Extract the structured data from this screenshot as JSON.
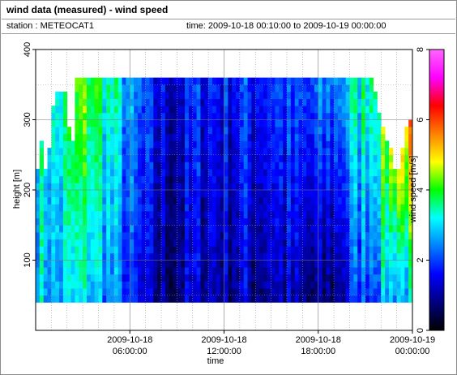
{
  "header": {
    "title": "wind data (measured) - wind speed",
    "station": "station : METEOCAT1",
    "time_range": "time: 2009-10-18 00:10:00 to 2009-10-19 00:00:00"
  },
  "chart_data": {
    "type": "heatmap",
    "title": "wind data (measured) - wind speed",
    "xlabel": "time",
    "ylabel": "height [m]",
    "colorbar_label": "wind speed [m/s]",
    "xlim": [
      0,
      24
    ],
    "ylim": [
      0,
      400
    ],
    "clim": [
      0,
      8
    ],
    "x_ticks": [
      {
        "at": 6,
        "line1": "2009-10-18",
        "line2": "06:00:00"
      },
      {
        "at": 12,
        "line1": "2009-10-18",
        "line2": "12:00:00"
      },
      {
        "at": 18,
        "line1": "2009-10-18",
        "line2": "18:00:00"
      },
      {
        "at": 24,
        "line1": "2009-10-19",
        "line2": "00:00:00"
      }
    ],
    "y_ticks": [
      100,
      200,
      300,
      400
    ],
    "colorbar_ticks": [
      0,
      2,
      4,
      6,
      8
    ],
    "grid": true,
    "colormap": [
      "#000000",
      "#00007f",
      "#0000ff",
      "#0080ff",
      "#00ffff",
      "#00ff00",
      "#ffff00",
      "#ff8000",
      "#ff0000",
      "#ff00ff",
      "#ff66ff"
    ],
    "grid_spec": {
      "time_start": 0,
      "time_end": 24,
      "time_step": 0.25,
      "height_start": 40,
      "height_step": 10,
      "n_heights": 33
    },
    "max_height_per_column": [
      230,
      260,
      270,
      270,
      270,
      240,
      230,
      220,
      230,
      260,
      260,
      270,
      300,
      320,
      330,
      340,
      340,
      340,
      340,
      340,
      340,
      340,
      340,
      340,
      320,
      300,
      290,
      280,
      270,
      260,
      270,
      280,
      360,
      360,
      360,
      360,
      360,
      360,
      360,
      360,
      360,
      360,
      360,
      360,
      360,
      360,
      360,
      360,
      360,
      360,
      360,
      360,
      360,
      360,
      360,
      360,
      360,
      360,
      360,
      360,
      360,
      360,
      360,
      360,
      360,
      360,
      360,
      360,
      360,
      360,
      360,
      360,
      360,
      360,
      360,
      360,
      360,
      360,
      360,
      360,
      360,
      360,
      360,
      360,
      360,
      360,
      360,
      360,
      360,
      360,
      360,
      360,
      360,
      360,
      360,
      360,
      360,
      360,
      360,
      360,
      360,
      360,
      360,
      360,
      360,
      360,
      360,
      360,
      360,
      360,
      360,
      360,
      360,
      360,
      360,
      360,
      360,
      360,
      360,
      360,
      360,
      360,
      360,
      360,
      360,
      360,
      360,
      360,
      360,
      360,
      360,
      360,
      360,
      360,
      360,
      360,
      360,
      360,
      360,
      360,
      360,
      360,
      360,
      360,
      360,
      360,
      360,
      360,
      360,
      360,
      360,
      360,
      360,
      360,
      360,
      360,
      360,
      360,
      360,
      360,
      360,
      360,
      360,
      360,
      360,
      360,
      360,
      360,
      360,
      360,
      360,
      360,
      360,
      360,
      360,
      360,
      360,
      360,
      360,
      360,
      360,
      360,
      360,
      360,
      360,
      360,
      360,
      360,
      360,
      360,
      360,
      360,
      360,
      360,
      360,
      360,
      360,
      360,
      360,
      360,
      360,
      360,
      360,
      360,
      360,
      360,
      360,
      360,
      360,
      360,
      360,
      360,
      360,
      360,
      360,
      360,
      360,
      360,
      360,
      360,
      360,
      360,
      360,
      360,
      360,
      360,
      360,
      360,
      360,
      360,
      360,
      360,
      360,
      360,
      360,
      360,
      360,
      360,
      360,
      360,
      360,
      360,
      360,
      360,
      360,
      360,
      360,
      360,
      360,
      360,
      360,
      360,
      360,
      360,
      360,
      360,
      360,
      360,
      360,
      360,
      360,
      360,
      360,
      360,
      360,
      360,
      360,
      360,
      360,
      360,
      360,
      360,
      360,
      360,
      360,
      360,
      360,
      360,
      360,
      360,
      360,
      360,
      360,
      360,
      360,
      360,
      360,
      360,
      350,
      340,
      330,
      320,
      310,
      300,
      300,
      290,
      290,
      280,
      280,
      270,
      270,
      260,
      260,
      250,
      240,
      230,
      230,
      220,
      220,
      230,
      240,
      250,
      260,
      270,
      270,
      280,
      290,
      300,
      300,
      300,
      300,
      300,
      300
    ],
    "speed_profile_by_hour": {
      "hours": [
        0.0,
        1.0,
        2.0,
        3.0,
        4.0,
        5.0,
        6.0,
        7.0,
        8.0,
        9.0,
        10.0,
        11.0,
        12.0,
        13.0,
        14.0,
        15.0,
        16.0,
        17.0,
        18.0,
        19.0,
        20.0,
        21.0,
        22.0,
        23.0,
        24.0
      ],
      "low": [
        3.0,
        2.6,
        2.8,
        3.1,
        2.7,
        2.2,
        1.6,
        1.0,
        0.8,
        0.9,
        1.1,
        1.2,
        1.0,
        1.1,
        1.0,
        1.2,
        1.0,
        0.8,
        0.5,
        0.8,
        1.6,
        2.2,
        2.6,
        2.8,
        3.0
      ],
      "high": [
        3.3,
        3.0,
        3.6,
        4.2,
        3.8,
        3.2,
        2.4,
        1.8,
        1.4,
        1.4,
        1.7,
        1.9,
        1.7,
        1.9,
        1.8,
        2.2,
        2.0,
        1.9,
        2.2,
        2.6,
        3.2,
        3.7,
        4.3,
        4.9,
        5.6
      ]
    }
  }
}
